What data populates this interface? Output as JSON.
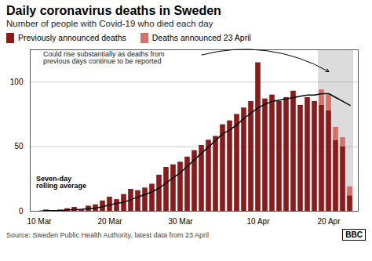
{
  "chart_data": {
    "type": "bar",
    "title": "Daily coronavirus deaths in Sweden",
    "subtitle": "Number of people with Covid-19 who died each day",
    "source": "Source: Sweden Public Health Authority, latest data from 23 April",
    "logo": "BBC",
    "annotation": "Could rise substantially as deaths from\nprevious days continue to be reported",
    "stacked": true,
    "grid": true,
    "legend": "upper left",
    "categories": [
      "10 Mar",
      null,
      null,
      null,
      null,
      null,
      null,
      null,
      null,
      null,
      "20 Mar",
      null,
      null,
      null,
      null,
      null,
      null,
      null,
      null,
      null,
      "30 Mar",
      null,
      null,
      null,
      null,
      null,
      null,
      null,
      null,
      null,
      null,
      "10 Apr",
      null,
      null,
      null,
      null,
      null,
      null,
      null,
      null,
      null,
      "20 Apr",
      null,
      null,
      null
    ],
    "series": [
      {
        "name": "Previously announced deaths",
        "color": "#8B1A1A",
        "values": [
          0,
          1,
          0,
          1,
          2,
          3,
          1,
          4,
          5,
          8,
          11,
          9,
          13,
          17,
          16,
          18,
          21,
          28,
          34,
          36,
          38,
          42,
          47,
          51,
          55,
          58,
          67,
          70,
          75,
          80,
          85,
          115,
          87,
          90,
          85,
          88,
          93,
          82,
          88,
          85,
          82,
          78,
          55,
          50,
          12
        ]
      },
      {
        "name": "Deaths announced 23 April",
        "color": "#D4716B",
        "values": [
          0,
          0,
          0,
          0,
          0,
          0,
          0,
          0,
          0,
          0,
          0,
          0,
          0,
          0,
          0,
          0,
          0,
          0,
          0,
          0,
          0,
          0,
          0,
          0,
          0,
          0,
          0,
          0,
          0,
          0,
          0,
          0,
          0,
          0,
          0,
          0,
          0,
          0,
          0,
          0,
          12,
          12,
          10,
          7,
          7
        ]
      },
      {
        "name": "Seven-day\nrolling average",
        "type": "line",
        "color": "#000000",
        "values": [
          0,
          0.4,
          0.4,
          0.5,
          1,
          1.2,
          1.5,
          2,
          2.5,
          3.5,
          5,
          6,
          7,
          9,
          11,
          13,
          15,
          18,
          22,
          26,
          30,
          35,
          40,
          45,
          50,
          55,
          60,
          63,
          67,
          72,
          76,
          80,
          83,
          85,
          86,
          87,
          88,
          89,
          90,
          90,
          91,
          91,
          88,
          85,
          82
        ]
      }
    ],
    "shade_start": 40,
    "shade_color": "#DCDCDC",
    "ylim": [
      0,
      125
    ],
    "yticks": [
      0,
      50,
      100
    ]
  }
}
